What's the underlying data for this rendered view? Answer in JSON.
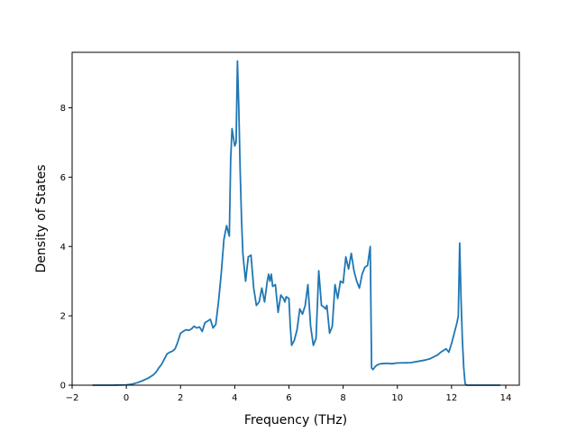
{
  "chart_data": {
    "type": "line",
    "title": "",
    "xlabel": "Frequency (THz)",
    "ylabel": "Density of States",
    "xlim": [
      -2,
      14.5
    ],
    "ylim": [
      0,
      9.6
    ],
    "xticks": [
      -2,
      0,
      2,
      4,
      6,
      8,
      10,
      12,
      14
    ],
    "xtick_labels": [
      "−2",
      "0",
      "2",
      "4",
      "6",
      "8",
      "10",
      "12",
      "14"
    ],
    "yticks": [
      0,
      2,
      4,
      6,
      8
    ],
    "ytick_labels": [
      "0",
      "2",
      "4",
      "6",
      "8"
    ],
    "grid": false,
    "legend": "none",
    "line_color": "#1f77b4",
    "series": [
      {
        "x": [
          -1.25,
          -1.0,
          -0.5,
          0.0,
          0.2,
          0.4,
          0.6,
          0.8,
          1.0,
          1.1,
          1.2,
          1.3,
          1.4,
          1.5,
          1.6,
          1.7,
          1.8,
          1.85,
          1.9,
          2.0,
          2.1,
          2.2,
          2.3,
          2.4,
          2.5,
          2.6,
          2.7,
          2.8,
          2.9,
          3.0,
          3.1,
          3.2,
          3.3,
          3.4,
          3.5,
          3.6,
          3.7,
          3.8,
          3.85,
          3.9,
          4.0,
          4.05,
          4.1,
          4.15,
          4.2,
          4.25,
          4.3,
          4.35,
          4.4,
          4.5,
          4.6,
          4.7,
          4.8,
          4.9,
          5.0,
          5.1,
          5.2,
          5.25,
          5.3,
          5.35,
          5.4,
          5.5,
          5.6,
          5.7,
          5.8,
          5.85,
          5.9,
          6.0,
          6.05,
          6.1,
          6.2,
          6.3,
          6.4,
          6.5,
          6.6,
          6.7,
          6.8,
          6.9,
          7.0,
          7.1,
          7.2,
          7.3,
          7.35,
          7.4,
          7.5,
          7.6,
          7.7,
          7.8,
          7.9,
          8.0,
          8.1,
          8.2,
          8.3,
          8.4,
          8.5,
          8.6,
          8.7,
          8.8,
          8.9,
          9.0,
          9.05,
          9.1,
          9.2,
          9.3,
          9.4,
          9.6,
          9.8,
          10.0,
          10.5,
          11.0,
          11.2,
          11.5,
          11.6,
          11.8,
          11.9,
          12.0,
          12.1,
          12.2,
          12.25,
          12.3,
          12.35,
          12.4,
          12.45,
          12.5,
          12.55,
          12.7,
          13.0,
          13.5,
          13.8
        ],
        "y": [
          0.0,
          0.0,
          0.0,
          0.01,
          0.03,
          0.07,
          0.13,
          0.2,
          0.3,
          0.38,
          0.5,
          0.6,
          0.75,
          0.9,
          0.95,
          0.98,
          1.05,
          1.15,
          1.25,
          1.5,
          1.55,
          1.6,
          1.58,
          1.62,
          1.7,
          1.65,
          1.68,
          1.55,
          1.8,
          1.85,
          1.9,
          1.65,
          1.75,
          2.4,
          3.2,
          4.2,
          4.6,
          4.3,
          6.5,
          7.4,
          6.9,
          7.0,
          9.35,
          8.0,
          6.2,
          4.8,
          3.8,
          3.4,
          3.0,
          3.7,
          3.75,
          2.8,
          2.3,
          2.4,
          2.8,
          2.4,
          3.0,
          3.2,
          3.0,
          3.2,
          2.85,
          2.9,
          2.1,
          2.6,
          2.5,
          2.4,
          2.55,
          2.5,
          1.7,
          1.15,
          1.3,
          1.6,
          2.2,
          2.05,
          2.3,
          2.9,
          1.7,
          1.15,
          1.35,
          3.3,
          2.3,
          2.25,
          2.2,
          2.3,
          1.5,
          1.7,
          2.9,
          2.5,
          3.0,
          2.95,
          3.7,
          3.35,
          3.8,
          3.3,
          3.0,
          2.8,
          3.2,
          3.4,
          3.45,
          4.0,
          0.5,
          0.45,
          0.55,
          0.6,
          0.62,
          0.63,
          0.62,
          0.64,
          0.65,
          0.72,
          0.76,
          0.88,
          0.95,
          1.05,
          0.95,
          1.2,
          1.5,
          1.8,
          2.0,
          4.1,
          2.5,
          1.3,
          0.5,
          0.05,
          0.0,
          0.0,
          0.0,
          0.0,
          0.0
        ]
      }
    ]
  }
}
